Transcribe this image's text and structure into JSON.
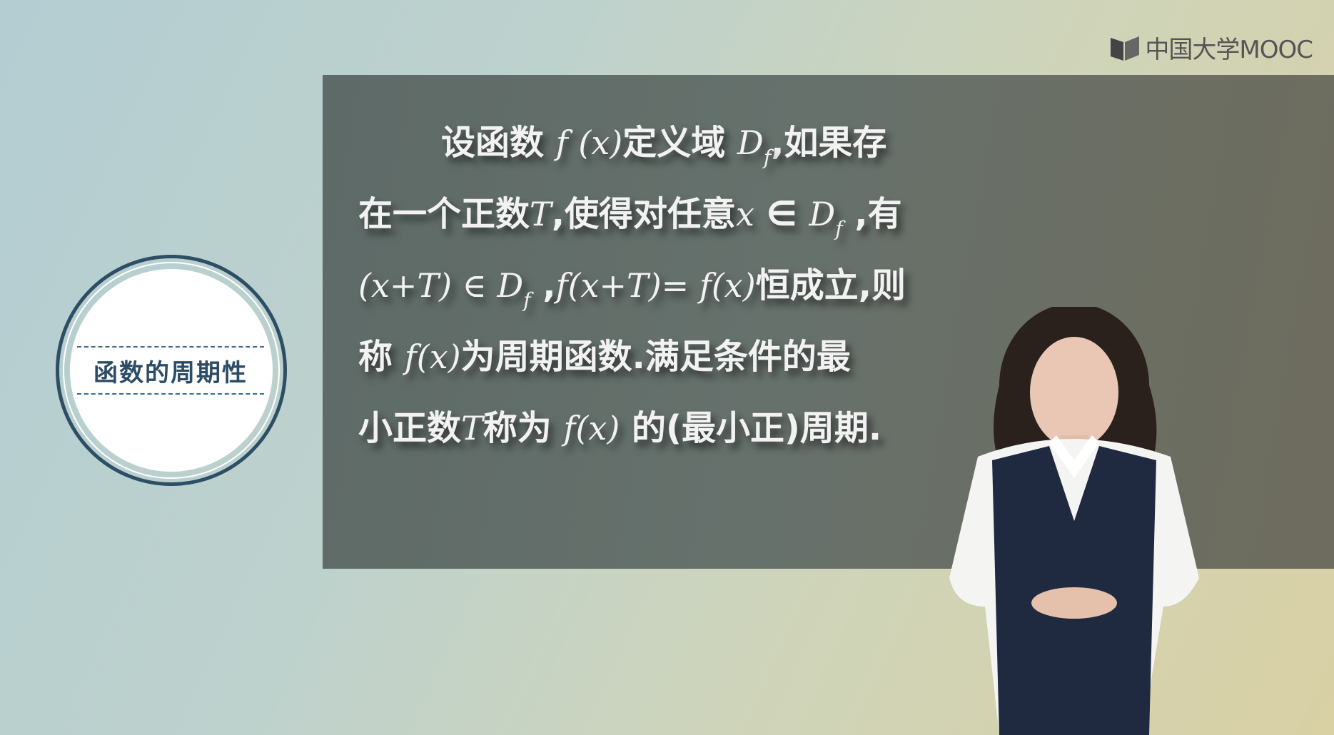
{
  "logo": {
    "text": "中国大学MOOC",
    "icon": "book-icon"
  },
  "badge": {
    "title": "函数的周期性"
  },
  "definition": {
    "line1": {
      "a": "设函数 ",
      "fx": "f (x)",
      "b": "定义域 ",
      "D": "D",
      "f": "f",
      "c": ",如果存"
    },
    "line2": {
      "a": "在一个正数",
      "T": "T",
      "b": ",使得对任意",
      "x": "x",
      "in": " ∈ ",
      "D": "D",
      "f": "f",
      "c": " ,有"
    },
    "line3": {
      "a": "(x+T) ∈ ",
      "D": "D",
      "f": "f",
      "b": " ,",
      "eq": "f(x+T)= f(x)",
      "c": "恒成立,则"
    },
    "line4": {
      "a": "称 ",
      "fx": "f(x)",
      "b": "为周期函数.满足条件的最"
    },
    "line5": {
      "a": "小正数",
      "T": "T",
      "b": "称为 ",
      "fx": "f(x)",
      "c": " 的(最小正)周期."
    }
  },
  "colors": {
    "board": "#646e69",
    "badge_border": "#2e4e66",
    "badge_text": "#2c4c66",
    "text": "#f2f2f2"
  }
}
